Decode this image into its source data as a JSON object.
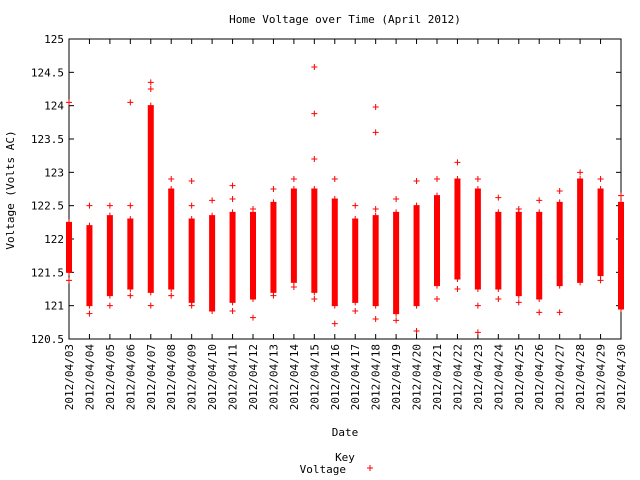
{
  "chart_data": {
    "type": "scatter",
    "title": "Home Voltage over Time (April 2012)",
    "xlabel": "Date",
    "ylabel": "Voltage (Volts AC)",
    "ylim": [
      120.5,
      125
    ],
    "yticks": [
      120.5,
      121,
      121.5,
      122,
      122.5,
      123,
      123.5,
      124,
      124.5,
      125
    ],
    "ytick_labels": [
      "120.5",
      "121",
      "121.5",
      "122",
      "122.5",
      "123",
      "123.5",
      "124",
      "124.5",
      "125"
    ],
    "grid": false,
    "legend": {
      "title": "Key",
      "placement": "bottom-center",
      "entries": [
        "Voltage"
      ]
    },
    "marker": "+",
    "categories": [
      "2012/04/03",
      "2012/04/04",
      "2012/04/05",
      "2012/04/06",
      "2012/04/07",
      "2012/04/08",
      "2012/04/09",
      "2012/04/10",
      "2012/04/11",
      "2012/04/12",
      "2012/04/13",
      "2012/04/14",
      "2012/04/15",
      "2012/04/16",
      "2012/04/17",
      "2012/04/18",
      "2012/04/19",
      "2012/04/20",
      "2012/04/21",
      "2012/04/22",
      "2012/04/23",
      "2012/04/24",
      "2012/04/25",
      "2012/04/26",
      "2012/04/27",
      "2012/04/28",
      "2012/04/29",
      "2012/04/30"
    ],
    "series": [
      {
        "name": "Voltage",
        "color": "#ff0000",
        "daily": [
          {
            "x": "2012/04/03",
            "low": 121.5,
            "high": 122.25,
            "outliers": [
              121.38,
              124.05
            ]
          },
          {
            "x": "2012/04/04",
            "low": 121.0,
            "high": 122.2,
            "outliers": [
              120.88,
              122.5
            ]
          },
          {
            "x": "2012/04/05",
            "low": 121.15,
            "high": 122.35,
            "outliers": [
              121.0,
              122.5
            ]
          },
          {
            "x": "2012/04/06",
            "low": 121.25,
            "high": 122.3,
            "outliers": [
              121.15,
              122.5,
              124.05
            ]
          },
          {
            "x": "2012/04/07",
            "low": 121.2,
            "high": 124.0,
            "outliers": [
              121.0,
              124.25,
              124.35
            ]
          },
          {
            "x": "2012/04/08",
            "low": 121.25,
            "high": 122.75,
            "outliers": [
              121.15,
              122.9
            ]
          },
          {
            "x": "2012/04/09",
            "low": 121.05,
            "high": 122.3,
            "outliers": [
              121.0,
              122.5,
              122.87
            ]
          },
          {
            "x": "2012/04/10",
            "low": 120.92,
            "high": 122.35,
            "outliers": [
              122.58
            ]
          },
          {
            "x": "2012/04/11",
            "low": 121.05,
            "high": 122.4,
            "outliers": [
              120.92,
              122.6,
              122.8
            ]
          },
          {
            "x": "2012/04/12",
            "low": 121.1,
            "high": 122.4,
            "outliers": [
              120.82,
              122.45
            ]
          },
          {
            "x": "2012/04/13",
            "low": 121.2,
            "high": 122.55,
            "outliers": [
              121.15,
              122.75
            ]
          },
          {
            "x": "2012/04/14",
            "low": 121.35,
            "high": 122.75,
            "outliers": [
              121.28,
              122.9
            ]
          },
          {
            "x": "2012/04/15",
            "low": 121.2,
            "high": 122.75,
            "outliers": [
              121.1,
              123.2,
              123.88,
              124.58
            ]
          },
          {
            "x": "2012/04/16",
            "low": 121.0,
            "high": 122.6,
            "outliers": [
              120.73,
              122.9
            ]
          },
          {
            "x": "2012/04/17",
            "low": 121.05,
            "high": 122.3,
            "outliers": [
              120.92,
              122.5
            ]
          },
          {
            "x": "2012/04/18",
            "low": 121.0,
            "high": 122.35,
            "outliers": [
              120.8,
              122.45,
              123.6,
              123.98
            ]
          },
          {
            "x": "2012/04/19",
            "low": 120.88,
            "high": 122.4,
            "outliers": [
              120.78,
              122.6
            ]
          },
          {
            "x": "2012/04/20",
            "low": 121.0,
            "high": 122.5,
            "outliers": [
              120.62,
              122.87
            ]
          },
          {
            "x": "2012/04/21",
            "low": 121.3,
            "high": 122.65,
            "outliers": [
              121.1,
              122.9
            ]
          },
          {
            "x": "2012/04/22",
            "low": 121.4,
            "high": 122.9,
            "outliers": [
              121.25,
              123.15
            ]
          },
          {
            "x": "2012/04/23",
            "low": 121.25,
            "high": 122.75,
            "outliers": [
              121.0,
              122.9,
              120.6
            ]
          },
          {
            "x": "2012/04/24",
            "low": 121.25,
            "high": 122.4,
            "outliers": [
              121.1,
              122.62
            ]
          },
          {
            "x": "2012/04/25",
            "low": 121.15,
            "high": 122.4,
            "outliers": [
              121.05,
              122.45
            ]
          },
          {
            "x": "2012/04/26",
            "low": 121.1,
            "high": 122.4,
            "outliers": [
              120.9,
              122.58
            ]
          },
          {
            "x": "2012/04/27",
            "low": 121.3,
            "high": 122.55,
            "outliers": [
              120.9,
              122.72
            ]
          },
          {
            "x": "2012/04/28",
            "low": 121.35,
            "high": 122.9,
            "outliers": [
              123.0
            ]
          },
          {
            "x": "2012/04/29",
            "low": 121.45,
            "high": 122.75,
            "outliers": [
              121.38,
              122.9
            ]
          },
          {
            "x": "2012/04/30",
            "low": 120.95,
            "high": 122.55,
            "outliers": [
              122.65
            ]
          }
        ]
      }
    ]
  }
}
